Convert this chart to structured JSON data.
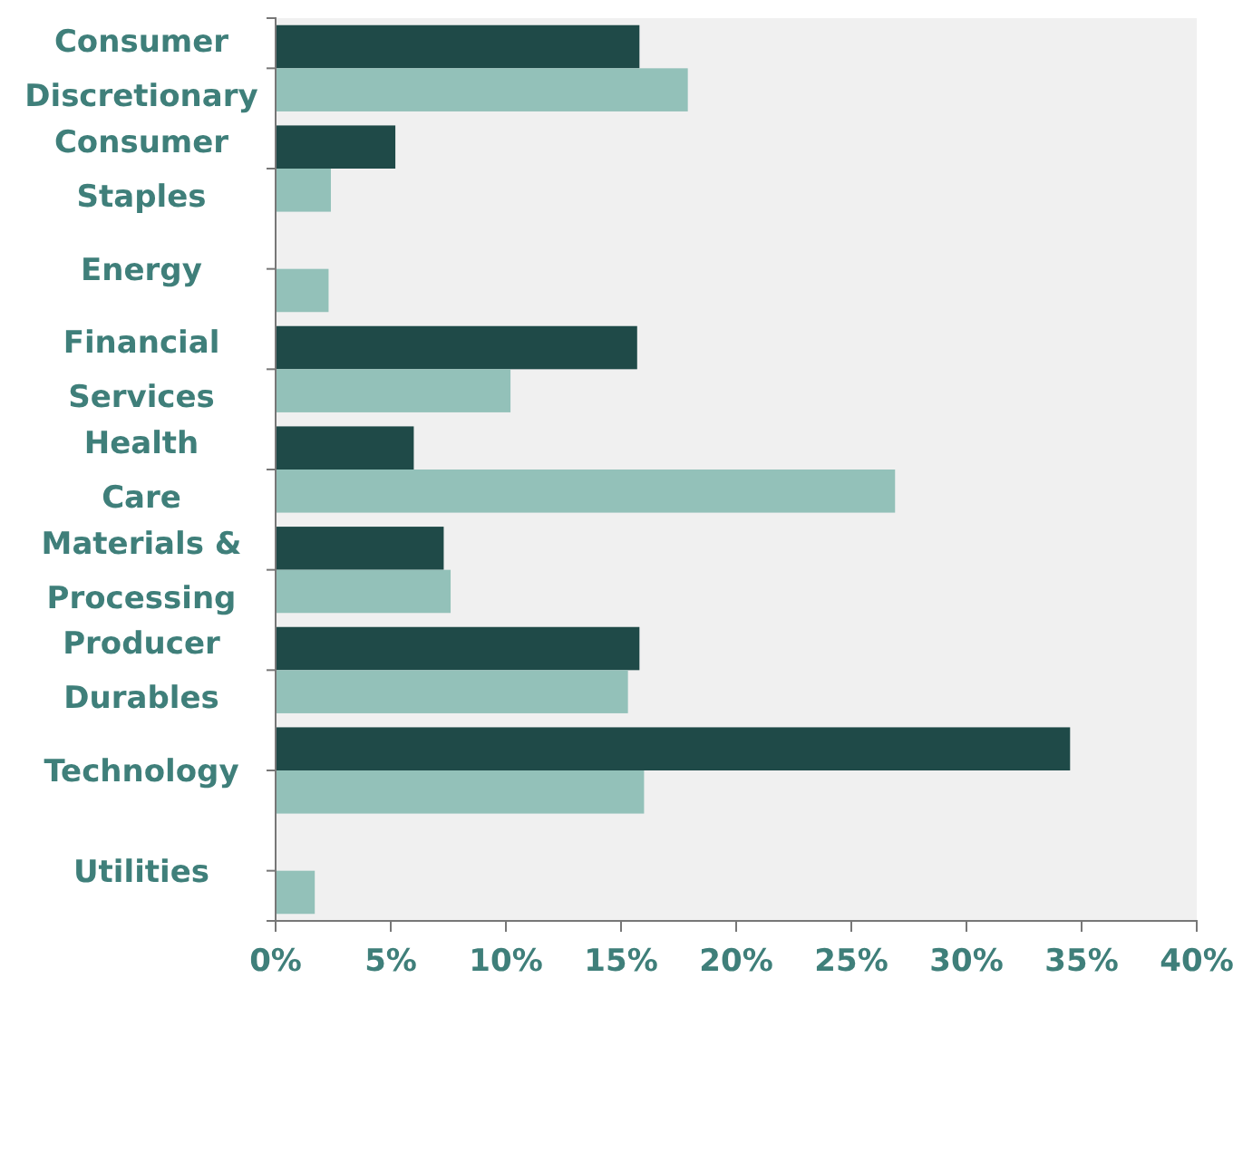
{
  "chart_data": {
    "type": "bar",
    "orientation": "horizontal",
    "categories": [
      "Consumer Discretionary",
      "Consumer Staples",
      "Energy",
      "Financial Services",
      "Health Care",
      "Materials & Processing",
      "Producer Durables",
      "Technology",
      "Utilities"
    ],
    "series": [
      {
        "color": "#1f4a48",
        "values": [
          15.8,
          5.2,
          0,
          15.7,
          6.0,
          7.3,
          15.8,
          34.5,
          0
        ]
      },
      {
        "color": "#93c1b9",
        "values": [
          17.9,
          2.4,
          2.3,
          10.2,
          26.9,
          7.6,
          15.3,
          16.0,
          1.7
        ]
      }
    ],
    "xlim": [
      0,
      40
    ],
    "xticks": [
      {
        "value": 0,
        "label": "0%"
      },
      {
        "value": 5,
        "label": "5%"
      },
      {
        "value": 10,
        "label": "10%"
      },
      {
        "value": 15,
        "label": "15%"
      },
      {
        "value": 20,
        "label": "20%"
      },
      {
        "value": 25,
        "label": "25%"
      },
      {
        "value": 30,
        "label": "30%"
      },
      {
        "value": 35,
        "label": "35%"
      },
      {
        "value": 40,
        "label": "40%"
      }
    ],
    "grid": false
  }
}
